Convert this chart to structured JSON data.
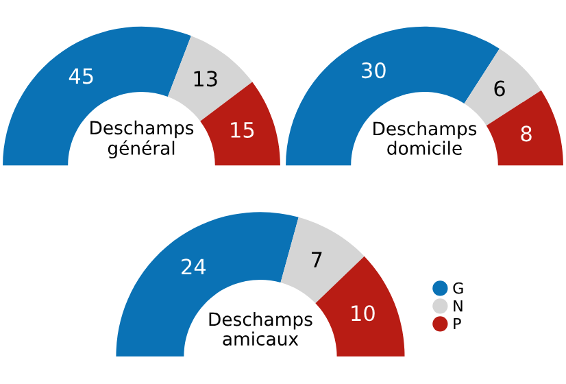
{
  "chart_data": [
    {
      "type": "donut",
      "title": "Deschamps\ngénéral",
      "categories": [
        "G",
        "N",
        "P"
      ],
      "values": [
        45,
        13,
        15
      ],
      "colors": [
        "#0a72b5",
        "#d5d5d5",
        "#b81c14"
      ],
      "data_labels": true,
      "legend": "bottom right"
    },
    {
      "type": "donut",
      "title": "Deschamps\ndomicile",
      "categories": [
        null,
        null,
        null
      ],
      "values": [
        30,
        6,
        8
      ],
      "colors": [
        "#0a72b5",
        "#d5d5d5",
        "#b81c14"
      ],
      "data_labels": true
    },
    {
      "type": "donut",
      "title": "Deschamps\namicaux",
      "categories": [
        null,
        null,
        null
      ],
      "values": [
        24,
        7,
        10
      ],
      "colors": [
        "#0a72b5",
        "#d5d5d5",
        "#b81c14"
      ],
      "data_labels": true
    }
  ]
}
